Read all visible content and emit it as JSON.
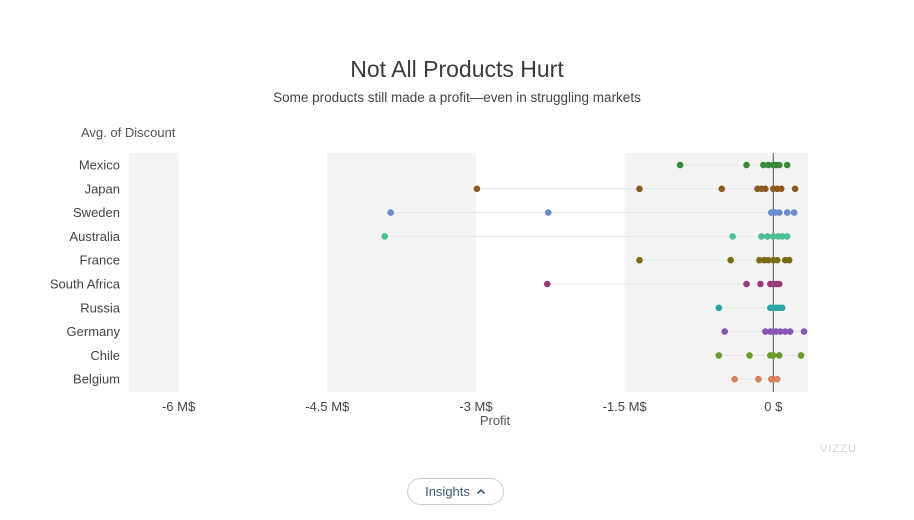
{
  "title": "Not All Products Hurt",
  "subtitle": "Some products still made a profit—even in struggling markets",
  "insights_label": "Insights",
  "watermark": "VIZZU",
  "chart_data": {
    "type": "scatter",
    "y_axis_title": "Avg. of Discount",
    "x_axis_title": "Profit",
    "x_ticks": [
      {
        "value": -6,
        "label": "-6 M$"
      },
      {
        "value": -4.5,
        "label": "-4.5 M$"
      },
      {
        "value": -3,
        "label": "-3 M$"
      },
      {
        "value": -1.5,
        "label": "-1.5 M$"
      },
      {
        "value": 0,
        "label": "0 $"
      }
    ],
    "xlim": [
      -6.5,
      0.35
    ],
    "shaded_bands": [
      [
        -6.5,
        -6
      ],
      [
        -4.5,
        -3
      ],
      [
        -1.5,
        0.35
      ]
    ],
    "categories": [
      "Mexico",
      "Japan",
      "Sweden",
      "Australia",
      "France",
      "South Africa",
      "Russia",
      "Germany",
      "Chile",
      "Belgium"
    ],
    "series": [
      {
        "category": "Mexico",
        "color": "#3a8a3a",
        "points": [
          -0.94,
          -0.27,
          -0.1,
          -0.05,
          0.0,
          0.03,
          0.06,
          0.14
        ]
      },
      {
        "category": "Japan",
        "color": "#8a5a1e",
        "points": [
          -2.99,
          -1.35,
          -0.52,
          -0.16,
          -0.12,
          -0.08,
          0.0,
          0.04,
          0.08,
          0.22
        ]
      },
      {
        "category": "Sweden",
        "color": "#6b8bd1",
        "points": [
          -3.86,
          -2.27,
          -0.02,
          0.02,
          0.06,
          0.14,
          0.21
        ]
      },
      {
        "category": "Australia",
        "color": "#4bbf8f",
        "points": [
          -3.92,
          -0.41,
          -0.12,
          -0.06,
          0.0,
          0.05,
          0.09,
          0.14
        ]
      },
      {
        "category": "France",
        "color": "#7a6a12",
        "points": [
          -1.35,
          -0.43,
          -0.14,
          -0.09,
          -0.05,
          0.0,
          0.04,
          0.12,
          0.16
        ]
      },
      {
        "category": "South Africa",
        "color": "#9a3b7a",
        "points": [
          -2.28,
          -0.27,
          -0.13,
          -0.03,
          0.0,
          0.03,
          0.06
        ]
      },
      {
        "category": "Russia",
        "color": "#2aa6a6",
        "points": [
          -0.55,
          -0.03,
          0.0,
          0.03,
          0.06,
          0.09
        ]
      },
      {
        "category": "Germany",
        "color": "#8a55b8",
        "points": [
          -0.49,
          -0.08,
          -0.03,
          0.0,
          0.03,
          0.07,
          0.12,
          0.17,
          0.31
        ]
      },
      {
        "category": "Chile",
        "color": "#6a9a2a",
        "points": [
          -0.55,
          -0.24,
          -0.03,
          0.0,
          0.06,
          0.28
        ]
      },
      {
        "category": "Belgium",
        "color": "#d9805f",
        "points": [
          -0.39,
          -0.15,
          -0.02,
          0.0,
          0.04
        ]
      }
    ],
    "grid": false,
    "legend": "none"
  }
}
